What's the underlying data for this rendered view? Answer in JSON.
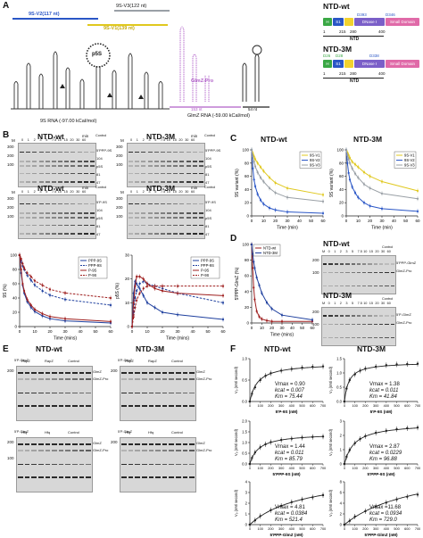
{
  "panel_labels": {
    "A": "A",
    "B": "B",
    "C": "C",
    "D": "D",
    "E": "E",
    "F": "F"
  },
  "panelA": {
    "bar_v3": "9S-V3(122 nt)",
    "bar_v2": "9S-V2(117 nt)",
    "bar_v1": "9S-V1(139 nt)",
    "p5s_label": "p5S",
    "rna9s_caption": "9S RNA (-97.00 kCal/mol)",
    "glmz_label": "GlmZ-Pro",
    "glmz_len1": "153 nt",
    "glmz_len2": "54 nt",
    "glmz_caption": "GlmZ RNA (-59.00 kCal/mol)",
    "colors": {
      "v3": "#9aa0a6",
      "v2": "#2a56c6",
      "v1": "#e0c81e",
      "glmz": "#b05fc8"
    }
  },
  "domains": {
    "wt_title": "NTD-wt",
    "m3_title": "NTD-3M",
    "h": "H",
    "s1": "S1",
    "dnase": "DNase I",
    "small": "Small Domain",
    "pos_wt": [
      "1",
      "215",
      "280",
      "400"
    ],
    "pos_m3": [
      "1",
      "215",
      "280",
      "400"
    ],
    "mut_wt": [
      "D393",
      "D346"
    ],
    "mut_m3_top": [
      "D26",
      "D28"
    ],
    "mut_m3": [
      "D338"
    ],
    "ntd": "NTD",
    "colors": {
      "h": "#3aa845",
      "s1": "#2a56c6",
      "y": "#f2d22e",
      "dnase": "#7b5fc8",
      "small": "#e06aa8"
    }
  },
  "panelB": {
    "gels": [
      {
        "title": "NTD-wt",
        "marker": "M",
        "lanes": [
          "0",
          "1",
          "2",
          "3",
          "5",
          "7.5",
          "10",
          "15",
          "20",
          "30",
          "60"
        ],
        "unit": "min",
        "sizes": [
          "300",
          "200",
          "100"
        ],
        "right_labels": [
          "5'PPP-9S",
          "104",
          "p5S",
          "81",
          "47"
        ],
        "control": "Control"
      },
      {
        "title": "NTD-3M",
        "marker": "M",
        "lanes": [
          "0",
          "1",
          "2",
          "3",
          "5",
          "7.5",
          "10",
          "15",
          "20",
          "30",
          "60"
        ],
        "unit": "min",
        "sizes": [
          "300",
          "200",
          "100"
        ],
        "right_labels": [
          "5'PPP-9S",
          "104",
          "p5S",
          "81",
          "47"
        ],
        "control": "Control"
      },
      {
        "title": "NTD-wt",
        "marker": "M",
        "lanes": [
          "0",
          "1",
          "2",
          "3",
          "5",
          "7.5",
          "10",
          "15",
          "20",
          "30",
          "60"
        ],
        "unit": "min",
        "sizes": [
          "300",
          "200",
          "100"
        ],
        "right_labels": [
          "5'P-9S",
          "104",
          "p5S",
          "81",
          "47"
        ],
        "control": "Control"
      },
      {
        "title": "NTD-3M",
        "marker": "M",
        "lanes": [
          "0",
          "1",
          "2",
          "3",
          "5",
          "7.5",
          "10",
          "15",
          "20",
          "30",
          "60"
        ],
        "unit": "min",
        "sizes": [
          "300",
          "200",
          "100"
        ],
        "right_labels": [
          "5'P-9S",
          "104",
          "p5S",
          "81",
          "47"
        ],
        "control": "Control"
      }
    ]
  },
  "panelC": {
    "title_wt": "NTD-wt",
    "title_m3": "NTD-3M"
  },
  "panelD": {
    "gel_wt": {
      "title": "NTD-wt",
      "lanes": [
        "M",
        "0",
        "1",
        "2",
        "3",
        "5",
        "7.5",
        "10",
        "15",
        "20",
        "30",
        "60"
      ],
      "right_labels": [
        "5'PPP-GlmZ",
        "GlmZ-Pro"
      ],
      "control": "Control",
      "sizes": [
        "200",
        "100"
      ]
    },
    "gel_m3": {
      "title": "NTD-3M",
      "lanes": [
        "M",
        "0",
        "1",
        "2",
        "3",
        "5",
        "7.5",
        "10",
        "15",
        "20",
        "30",
        "60"
      ],
      "right_labels": [
        "5'P-GlmZ",
        "GlmZ-Pro"
      ],
      "control": "Control",
      "sizes": [
        "200",
        "100"
      ]
    }
  },
  "panelE": {
    "title_wt": "NTD-wt",
    "title_m3": "NTD-3M",
    "top_wt": {
      "cols": [
        "RapZ",
        "RapZ",
        "Control"
      ],
      "right_labels": [
        "GlmZ",
        "GlmZ-Pro"
      ],
      "left_label": "5'P-GlmZ",
      "sizes": [
        "200"
      ]
    },
    "top_m3": {
      "cols": [
        "RapZ",
        "RapZ",
        "Control"
      ],
      "right_labels": [
        "GlmZ",
        "GlmZ-Pro"
      ],
      "left_label": "5'P-GlmZ",
      "sizes": [
        "200"
      ]
    },
    "bot_wt": {
      "cols": [
        "Hfq",
        "Hfq",
        "Control"
      ],
      "right_labels": [
        "GlmZ",
        "GlmZ-Pro"
      ],
      "left_label": "5'P-GlmZ",
      "sizes": [
        "200",
        "100"
      ]
    },
    "bot_m3": {
      "cols": [
        "Hfq",
        "Hfq",
        "Control"
      ],
      "right_labels": [
        "GlmZ",
        "GlmZ-Pro"
      ],
      "left_label": "5'P-GlmZ",
      "sizes": [
        "200"
      ]
    }
  },
  "panelF": {
    "title_wt": "NTD-wt",
    "title_m3": "NTD-3M",
    "ylabel": "V₀ (nM/ second)",
    "plots": [
      {
        "xlabel": "5'P-9S (nM)",
        "vmax": "Vmax = 0.90",
        "kcat": "kcat = 0.007",
        "km": "Km = 75.44"
      },
      {
        "xlabel": "5'P-9S (nM)",
        "vmax": "Vmax = 1.38",
        "kcat": "kcat = 0.011",
        "km": "Km = 41.84"
      },
      {
        "xlabel": "5'PPP-9S (nM)",
        "vmax": "Vmax = 1.44",
        "kcat": "kcat = 0.011",
        "km": "Km = 85.79"
      },
      {
        "xlabel": "5'PPP-9S (nM)",
        "vmax": "Vmax = 2.87",
        "kcat": "kcat = 0.0229",
        "km": "Km = 96.88"
      },
      {
        "xlabel": "5'PPP-GlmZ (nM)",
        "vmax": "Vmax = 4.81",
        "kcat": "kcat = 0.0384",
        "km": "Km = 521.4"
      },
      {
        "xlabel": "5'PPP-GlmZ (nM)",
        "vmax": "Vmax =11.68",
        "kcat": "kcat = 0.0934",
        "km": "Km = 729.0"
      }
    ]
  },
  "chart_data": [
    {
      "type": "line",
      "panel": "B-left",
      "ylabel": "9S (%)",
      "xlabel": "Time (mins)",
      "x": [
        0,
        1,
        2,
        3,
        5,
        7.5,
        10,
        15,
        20,
        30,
        60
      ],
      "xlim": [
        0,
        60
      ],
      "ylim": [
        0,
        100
      ],
      "yticks": [
        "0",
        "20",
        "40",
        "60",
        "80",
        "100"
      ],
      "xticks": [
        "0",
        "10",
        "20",
        "30",
        "40",
        "50",
        "60"
      ],
      "series": [
        {
          "name": "PPP-9S",
          "color": "#1e3f9e",
          "dash": "solid",
          "values": [
            100,
            75,
            58,
            47,
            35,
            27,
            21,
            15,
            11,
            8,
            5
          ]
        },
        {
          "name": "PPP-9S",
          "color": "#1e3f9e",
          "dash": "dashed",
          "values": [
            100,
            92,
            85,
            80,
            72,
            65,
            58,
            50,
            44,
            38,
            30
          ]
        },
        {
          "name": "P-9S",
          "color": "#9e1e1e",
          "dash": "solid",
          "values": [
            100,
            80,
            60,
            50,
            38,
            30,
            24,
            18,
            14,
            11,
            7
          ]
        },
        {
          "name": "P-9S",
          "color": "#9e1e1e",
          "dash": "dashed",
          "values": [
            100,
            95,
            88,
            82,
            75,
            70,
            64,
            58,
            52,
            47,
            40
          ]
        }
      ]
    },
    {
      "type": "line",
      "panel": "B-right",
      "ylabel": "p5S (%)",
      "xlabel": "Time (mins)",
      "x": [
        0,
        1,
        2,
        3,
        5,
        7.5,
        10,
        15,
        20,
        30,
        60
      ],
      "xlim": [
        0,
        60
      ],
      "ylim": [
        0,
        30
      ],
      "yticks": [
        "0",
        "10",
        "20",
        "30"
      ],
      "xticks": [
        "0",
        "10",
        "20",
        "30",
        "40",
        "50",
        "60"
      ],
      "series": [
        {
          "name": "PPP-9S",
          "color": "#1e3f9e",
          "dash": "solid",
          "values": [
            0,
            14,
            19,
            18,
            16,
            13,
            10,
            8,
            6,
            5,
            3
          ]
        },
        {
          "name": "PPP-9S",
          "color": "#1e3f9e",
          "dash": "dashed",
          "values": [
            0,
            6,
            12,
            15,
            18,
            19,
            18,
            17,
            16,
            14,
            10
          ]
        },
        {
          "name": "P-9S",
          "color": "#9e1e1e",
          "dash": "solid",
          "values": [
            0,
            10,
            17,
            21,
            21,
            20,
            18,
            16,
            15,
            14,
            13
          ]
        },
        {
          "name": "P-9S",
          "color": "#9e1e1e",
          "dash": "dashed",
          "values": [
            0,
            4,
            8,
            11,
            14,
            16,
            17,
            17,
            17,
            17,
            17
          ]
        }
      ]
    },
    {
      "type": "line",
      "panel": "C-wt",
      "title": "NTD-wt",
      "ylabel": "9S variant (%)",
      "xlabel": "Time (min)",
      "x": [
        0,
        1,
        2,
        3,
        5,
        7.5,
        10,
        15,
        20,
        30,
        60
      ],
      "xlim": [
        0,
        60
      ],
      "ylim": [
        0,
        100
      ],
      "yticks": [
        "0",
        "20",
        "40",
        "60",
        "80",
        "100"
      ],
      "xticks": [
        "0",
        "10",
        "20",
        "30",
        "40",
        "50",
        "60"
      ],
      "series": [
        {
          "name": "9S-V1",
          "color": "#e0c81e",
          "values": [
            100,
            95,
            90,
            86,
            80,
            74,
            68,
            58,
            50,
            42,
            32
          ]
        },
        {
          "name": "9S-V2",
          "color": "#2a56c6",
          "values": [
            100,
            72,
            55,
            45,
            33,
            24,
            18,
            12,
            9,
            6,
            4
          ]
        },
        {
          "name": "9S-V3",
          "color": "#9aa0a6",
          "values": [
            100,
            90,
            82,
            75,
            66,
            58,
            52,
            42,
            35,
            28,
            22
          ]
        }
      ]
    },
    {
      "type": "line",
      "panel": "C-3M",
      "title": "NTD-3M",
      "ylabel": "9S variant (%)",
      "xlabel": "Time (min)",
      "x": [
        0,
        1,
        2,
        3,
        5,
        7.5,
        10,
        15,
        20,
        30,
        60
      ],
      "xlim": [
        0,
        60
      ],
      "ylim": [
        0,
        100
      ],
      "yticks": [
        "0",
        "20",
        "40",
        "60",
        "80",
        "100"
      ],
      "xticks": [
        "0",
        "10",
        "20",
        "30",
        "40",
        "50",
        "60"
      ],
      "series": [
        {
          "name": "9S-V1",
          "color": "#e0c81e",
          "values": [
            100,
            96,
            92,
            88,
            82,
            78,
            74,
            66,
            60,
            52,
            38
          ]
        },
        {
          "name": "9S-V2",
          "color": "#2a56c6",
          "values": [
            100,
            80,
            65,
            55,
            44,
            35,
            28,
            20,
            15,
            11,
            7
          ]
        },
        {
          "name": "9S-V3",
          "color": "#9aa0a6",
          "values": [
            100,
            92,
            86,
            80,
            72,
            64,
            58,
            48,
            42,
            34,
            26
          ]
        }
      ]
    },
    {
      "type": "line",
      "panel": "D",
      "ylabel": "5'PPP-GlmZ (%)",
      "xlabel": "Time (mins)",
      "x": [
        0,
        1,
        2,
        3,
        5,
        7.5,
        10,
        15,
        20,
        30,
        60
      ],
      "xlim": [
        0,
        60
      ],
      "ylim": [
        0,
        100
      ],
      "yticks": [
        "0",
        "20",
        "40",
        "60",
        "80",
        "100"
      ],
      "xticks": [
        "0",
        "10",
        "20",
        "30",
        "40",
        "50",
        "60"
      ],
      "series": [
        {
          "name": "NTD-wt",
          "color": "#9e1e1e",
          "values": [
            100,
            70,
            45,
            30,
            15,
            8,
            5,
            3,
            2,
            2,
            2
          ]
        },
        {
          "name": "NTD-3M",
          "color": "#1e3f9e",
          "values": [
            100,
            88,
            78,
            70,
            58,
            48,
            38,
            26,
            18,
            10,
            4
          ]
        }
      ]
    },
    {
      "type": "scatter",
      "panel": "F",
      "plots": [
        {
          "xlabel": "5'P-9S (nM)",
          "x": [
            0,
            20,
            50,
            100,
            150,
            200,
            300,
            400,
            500,
            600,
            700
          ],
          "y": [
            0,
            0.18,
            0.33,
            0.5,
            0.6,
            0.66,
            0.72,
            0.76,
            0.79,
            0.81,
            0.82
          ],
          "vmax": 0.9,
          "km": 75.44,
          "xlim": [
            0,
            700
          ],
          "ylim": [
            0,
            1.0
          ],
          "yticks": [
            "0.0",
            "0.5",
            "1.0"
          ]
        },
        {
          "xlabel": "5'P-9S (nM)",
          "x": [
            0,
            20,
            50,
            100,
            150,
            200,
            300,
            400,
            500,
            600,
            700
          ],
          "y": [
            0,
            0.45,
            0.75,
            0.95,
            1.08,
            1.15,
            1.22,
            1.27,
            1.3,
            1.31,
            1.32
          ],
          "vmax": 1.38,
          "km": 41.84,
          "xlim": [
            0,
            700
          ],
          "ylim": [
            0,
            1.5
          ],
          "yticks": [
            "0.0",
            "0.5",
            "1.0",
            "1.5"
          ]
        },
        {
          "xlabel": "5'PPP-9S (nM)",
          "x": [
            0,
            20,
            50,
            100,
            150,
            200,
            300,
            400,
            500,
            600,
            700
          ],
          "y": [
            0,
            0.28,
            0.54,
            0.78,
            0.92,
            1.02,
            1.12,
            1.18,
            1.23,
            1.26,
            1.28
          ],
          "vmax": 1.44,
          "km": 85.79,
          "xlim": [
            0,
            700
          ],
          "ylim": [
            0,
            2.0
          ],
          "yticks": [
            "0.0",
            "0.5",
            "1.0",
            "1.5",
            "2.0"
          ]
        },
        {
          "xlabel": "5'PPP-9S (nM)",
          "x": [
            0,
            20,
            50,
            100,
            150,
            200,
            300,
            400,
            500,
            600,
            700
          ],
          "y": [
            0,
            0.5,
            0.98,
            1.45,
            1.75,
            1.95,
            2.18,
            2.32,
            2.43,
            2.5,
            2.55
          ],
          "vmax": 2.87,
          "km": 96.88,
          "xlim": [
            0,
            700
          ],
          "ylim": [
            0,
            3.0
          ],
          "yticks": [
            "0",
            "1",
            "2",
            "3"
          ]
        },
        {
          "xlabel": "5'PPP-GlmZ (nM)",
          "x": [
            0,
            50,
            100,
            200,
            300,
            400,
            500,
            600,
            700
          ],
          "y": [
            0,
            0.4,
            0.8,
            1.35,
            1.75,
            2.1,
            2.35,
            2.55,
            2.75
          ],
          "vmax": 4.81,
          "km": 521.4,
          "xlim": [
            0,
            700
          ],
          "ylim": [
            0,
            4
          ],
          "yticks": [
            "0",
            "1",
            "2",
            "3",
            "4"
          ]
        },
        {
          "xlabel": "5'PPP-GlmZ (nM)",
          "x": [
            0,
            50,
            100,
            200,
            300,
            400,
            500,
            600,
            700
          ],
          "y": [
            0,
            0.7,
            1.5,
            2.5,
            3.4,
            4.1,
            4.7,
            5.2,
            5.6
          ],
          "vmax": 11.68,
          "km": 729.0,
          "xlim": [
            0,
            700
          ],
          "ylim": [
            0,
            8
          ],
          "yticks": [
            "0",
            "2",
            "4",
            "6",
            "8"
          ]
        }
      ]
    }
  ]
}
